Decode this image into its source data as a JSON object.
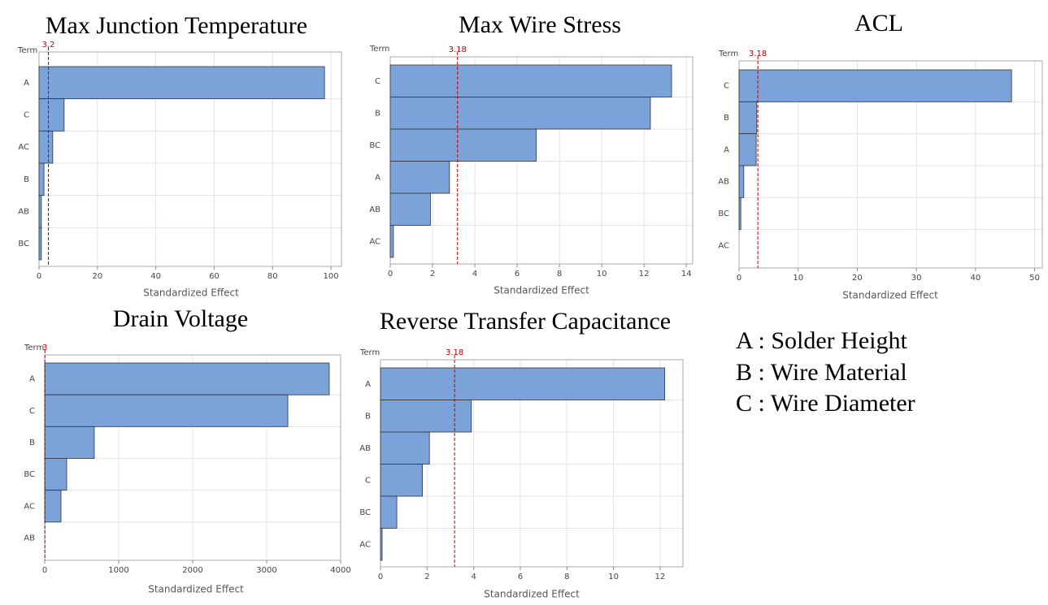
{
  "chart_data": [
    {
      "type": "bar",
      "title": "Max Junction Temperature",
      "y_label": "Term",
      "x_label": "Standardized Effect",
      "categories": [
        "A",
        "C",
        "AC",
        "B",
        "AB",
        "BC"
      ],
      "values": [
        97.8,
        8.6,
        4.7,
        1.7,
        0.8,
        0.8
      ],
      "xlim": [
        0,
        103.6
      ],
      "xticks": [
        0,
        20,
        40,
        60,
        80,
        100
      ],
      "reference": 3.2,
      "color": "#7ba3d9",
      "reference_color": "#c00000",
      "grid": true
    },
    {
      "type": "bar",
      "title": "Max Wire Stress",
      "y_label": "Term",
      "x_label": "Standardized Effect",
      "categories": [
        "C",
        "B",
        "BC",
        "A",
        "AB",
        "AC"
      ],
      "values": [
        13.3,
        12.3,
        6.9,
        2.8,
        1.9,
        0.15
      ],
      "xlim": [
        0,
        14.3
      ],
      "xticks": [
        0,
        2,
        4,
        6,
        8,
        10,
        12,
        14
      ],
      "reference": 3.18,
      "color": "#7ba3d9",
      "reference_color": "#c00000",
      "grid": true
    },
    {
      "type": "bar",
      "title": "ACL",
      "y_label": "Term",
      "x_label": "Standardized Effect",
      "categories": [
        "C",
        "B",
        "A",
        "AB",
        "BC",
        "AC"
      ],
      "values": [
        46.1,
        3.0,
        2.9,
        0.8,
        0.3,
        0
      ],
      "xlim": [
        0,
        51.3
      ],
      "xticks": [
        0,
        10,
        20,
        30,
        40,
        50
      ],
      "reference": 3.18,
      "color": "#7ba3d9",
      "reference_color": "#c00000",
      "grid": true
    },
    {
      "type": "bar",
      "title": "Drain Voltage",
      "y_label": "Term",
      "x_label": "Standardized Effect",
      "categories": [
        "A",
        "C",
        "B",
        "BC",
        "AC",
        "AB"
      ],
      "values": [
        3846,
        3286,
        670,
        297,
        220,
        0
      ],
      "xlim": [
        0,
        4000
      ],
      "xticks": [
        0,
        1000,
        2000,
        3000,
        4000
      ],
      "reference": 3,
      "color": "#7ba3d9",
      "reference_color": "#c00000",
      "grid": true
    },
    {
      "type": "bar",
      "title": "Reverse Transfer Capacitance",
      "y_label": "Term",
      "x_label": "Standardized Effect",
      "categories": [
        "A",
        "B",
        "AB",
        "C",
        "BC",
        "AC"
      ],
      "values": [
        12.2,
        3.9,
        2.1,
        1.8,
        0.7,
        0.07
      ],
      "xlim": [
        0,
        12.98
      ],
      "xticks": [
        0,
        2,
        4,
        6,
        8,
        10,
        12
      ],
      "reference": 3.18,
      "color": "#7ba3d9",
      "reference_color": "#c00000",
      "grid": true
    }
  ],
  "legend": [
    "A : Solder Height",
    "B : Wire Material",
    "C : Wire Diameter"
  ]
}
